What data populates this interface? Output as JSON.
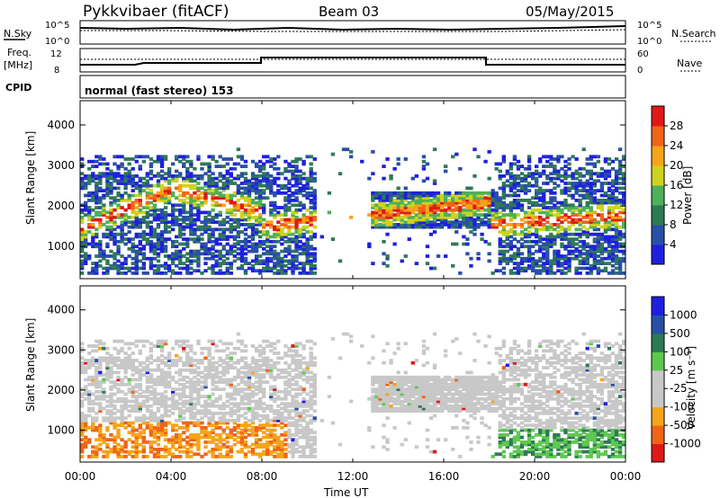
{
  "header": {
    "station": "Pykkvibaer (fitACF)",
    "beam": "Beam 03",
    "date": "05/May/2015"
  },
  "strips": {
    "nsky_label": "N.Sky",
    "nsky_ticks": [
      "10^5",
      "10^0"
    ],
    "nsearch_label": "N.Search",
    "nsearch_ticks": [
      "10^5",
      "10^0"
    ],
    "freq_label_1": "Freq.",
    "freq_label_2": "[MHz]",
    "freq_ticks": [
      "12",
      "8"
    ],
    "nave_label": "Nave",
    "nave_ticks": [
      "60",
      "0"
    ],
    "cpid_label": "CPID",
    "cpid_text": "normal (fast stereo) 153"
  },
  "colors": {
    "power": [
      "#1f1fe0",
      "#2a4fa8",
      "#2f7a55",
      "#4db05a",
      "#cfd31d",
      "#f5a41a",
      "#f06418",
      "#e01818"
    ],
    "velocity": [
      "#e01818",
      "#f06418",
      "#f5a41a",
      "#c8c8c8",
      "#c8c8c8",
      "#5ec850",
      "#2f7a55",
      "#2a4fa8",
      "#1f1fe0"
    ]
  },
  "chart_data": [
    {
      "type": "heatmap",
      "name": "power",
      "ylabel": "Slant Range [km]",
      "xlabel": "Time UT",
      "x_ticks": [
        "00:00",
        "04:00",
        "08:00",
        "12:00",
        "16:00",
        "20:00",
        "00:00"
      ],
      "y_ticks": [
        "1000",
        "2000",
        "3000",
        "4000"
      ],
      "xlim_hours": [
        0,
        24
      ],
      "ylim": [
        200,
        4600
      ],
      "colorbar_label": "Power [dB]",
      "colorbar_ticks": [
        "4",
        "8",
        "12",
        "16",
        "20",
        "24",
        "28"
      ]
    },
    {
      "type": "heatmap",
      "name": "velocity",
      "ylabel": "Slant Range [km]",
      "xlabel": "Time UT",
      "x_ticks": [
        "00:00",
        "04:00",
        "08:00",
        "12:00",
        "16:00",
        "20:00",
        "00:00"
      ],
      "y_ticks": [
        "1000",
        "2000",
        "3000",
        "4000"
      ],
      "xlim_hours": [
        0,
        24
      ],
      "ylim": [
        200,
        4600
      ],
      "colorbar_label": "Velocity [m s⁻¹]",
      "colorbar_ticks": [
        "1000",
        "500",
        "100",
        "25",
        "-25",
        "-100",
        "-500",
        "-1000"
      ]
    }
  ]
}
